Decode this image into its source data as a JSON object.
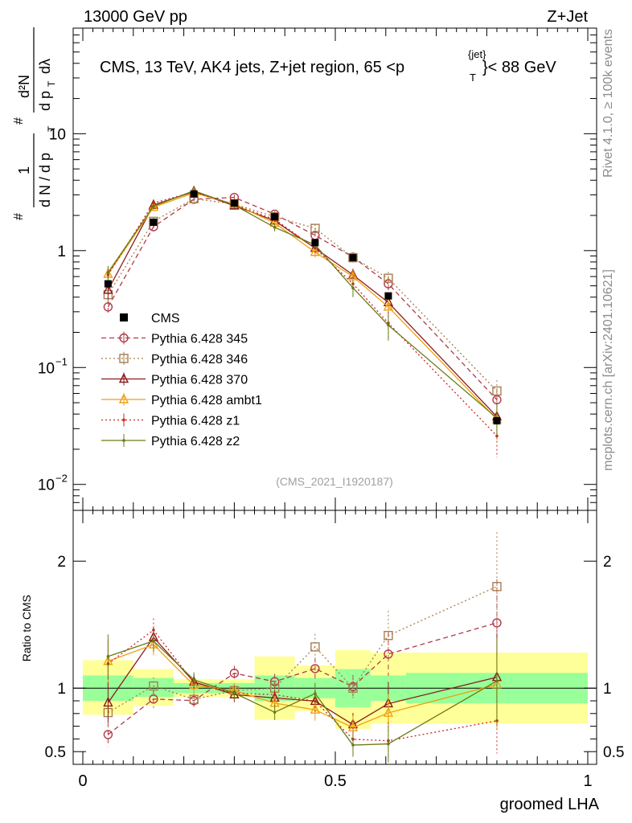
{
  "header": {
    "left": "13000 GeV pp",
    "right": "Z+Jet"
  },
  "chart_data": {
    "type": "line",
    "title": "CMS, 13 TeV, AK4 jets, Z+jet region, 65 <p_T^{jet}< 88 GeV",
    "title_parts": {
      "pre": "CMS, 13 TeV, AK4 jets, Z+jet region, 65 <p",
      "sub": "T",
      "sup": "{jet}",
      "post": "}< 88 GeV"
    },
    "analysis_label": "(CMS_2021_I1920187)",
    "side_label_top": "Rivet 4.1.0, ≥ 100k events",
    "side_label_bottom": "mcplots.cern.ch [arXiv:2401.10621]",
    "ylabel_parts": [
      "#",
      "1",
      "d N / d p",
      "T",
      "#",
      "d p",
      "T",
      "d²N",
      "dλ"
    ],
    "xlabel": "groomed LHA",
    "ratio_ylabel": "Ratio to CMS",
    "xlim": [
      0,
      1
    ],
    "ylim_log": [
      0.006,
      80
    ],
    "ratio_ylim": [
      0.4,
      2.4
    ],
    "x_ticks": [
      {
        "v": 0,
        "label": "0"
      },
      {
        "v": 0.5,
        "label": "0.5"
      },
      {
        "v": 1,
        "label": "1"
      }
    ],
    "y_ticks": [
      {
        "v": 0.01,
        "base": "10",
        "exp": "−2"
      },
      {
        "v": 0.1,
        "base": "10",
        "exp": "−1"
      },
      {
        "v": 1,
        "base": "1",
        "exp": ""
      },
      {
        "v": 10,
        "base": "10",
        "exp": ""
      }
    ],
    "ratio_ticks": [
      {
        "v": 0.5,
        "label": "0.5"
      },
      {
        "v": 1,
        "label": "1"
      },
      {
        "v": 2,
        "label": "2"
      }
    ],
    "bin_edges": [
      0,
      0.1,
      0.18,
      0.26,
      0.34,
      0.42,
      0.5,
      0.57,
      0.64,
      1.0
    ],
    "x_centers": [
      0.05,
      0.14,
      0.22,
      0.3,
      0.38,
      0.46,
      0.535,
      0.605,
      0.82
    ],
    "data": {
      "name": "CMS",
      "color": "#000000",
      "values": [
        0.52,
        1.75,
        3.05,
        2.55,
        1.95,
        1.17,
        0.87,
        0.41,
        0.035
      ],
      "band_green": [
        [
          0.9,
          1.1
        ],
        [
          0.93,
          1.08
        ],
        [
          0.96,
          1.04
        ],
        [
          0.96,
          1.04
        ],
        [
          0.9,
          1.1
        ],
        [
          0.92,
          1.08
        ],
        [
          0.85,
          1.15
        ],
        [
          0.9,
          1.1
        ],
        [
          0.88,
          1.12
        ]
      ],
      "band_yellow": [
        [
          0.79,
          1.22
        ],
        [
          0.86,
          1.15
        ],
        [
          0.93,
          1.07
        ],
        [
          0.93,
          1.07
        ],
        [
          0.75,
          1.25
        ],
        [
          0.82,
          1.18
        ],
        [
          0.68,
          1.3
        ],
        [
          0.72,
          1.28
        ],
        [
          0.72,
          1.28
        ]
      ]
    },
    "series": [
      {
        "name": "Pythia 6.428 345",
        "color": "#b03a4a",
        "dash": "6,4",
        "marker": "circle",
        "values": [
          0.33,
          1.6,
          2.75,
          2.85,
          2.05,
          1.35,
          0.88,
          0.52,
          0.053
        ],
        "errors": [
          0.05,
          0.12,
          0.15,
          0.15,
          0.12,
          0.1,
          0.08,
          0.07,
          0.012
        ]
      },
      {
        "name": "Pythia 6.428 346",
        "color": "#a87d50",
        "dash": "2,3",
        "marker": "square",
        "values": [
          0.42,
          1.78,
          2.78,
          2.5,
          1.95,
          1.55,
          0.87,
          0.58,
          0.063
        ],
        "errors": [
          0.06,
          0.12,
          0.15,
          0.15,
          0.12,
          0.12,
          0.08,
          0.08,
          0.015
        ]
      },
      {
        "name": "Pythia 6.428 370",
        "color": "#8b1a1a",
        "dash": "",
        "marker": "triangle",
        "values": [
          0.46,
          2.45,
          3.2,
          2.42,
          1.8,
          1.05,
          0.62,
          0.36,
          0.038
        ],
        "errors": [
          0.08,
          0.15,
          0.18,
          0.15,
          0.12,
          0.1,
          0.08,
          0.07,
          0.012
        ]
      },
      {
        "name": "Pythia 6.428 ambt1",
        "color": "#f0a010",
        "dash": "",
        "marker": "triangle",
        "values": [
          0.63,
          2.35,
          3.12,
          2.5,
          1.72,
          0.97,
          0.6,
          0.33,
          0.036
        ],
        "errors": [
          0.09,
          0.15,
          0.18,
          0.15,
          0.12,
          0.1,
          0.08,
          0.06,
          0.012
        ]
      },
      {
        "name": "Pythia 6.428 z1",
        "color": "#d42020",
        "dash": "2,3",
        "marker": "dot",
        "values": [
          0.62,
          2.55,
          3.18,
          2.45,
          1.85,
          1.05,
          0.52,
          0.24,
          0.026
        ],
        "errors": [
          0.09,
          0.16,
          0.18,
          0.15,
          0.12,
          0.1,
          0.08,
          0.06,
          0.009
        ]
      },
      {
        "name": "Pythia 6.428 z2",
        "color": "#6b7a14",
        "dash": "",
        "marker": "dot",
        "values": [
          0.65,
          2.4,
          3.25,
          2.45,
          1.58,
          1.12,
          0.48,
          0.23,
          0.037
        ],
        "errors": [
          0.09,
          0.15,
          0.18,
          0.15,
          0.12,
          0.1,
          0.08,
          0.06,
          0.012
        ]
      }
    ],
    "legend": {
      "position": "middle-left"
    }
  }
}
